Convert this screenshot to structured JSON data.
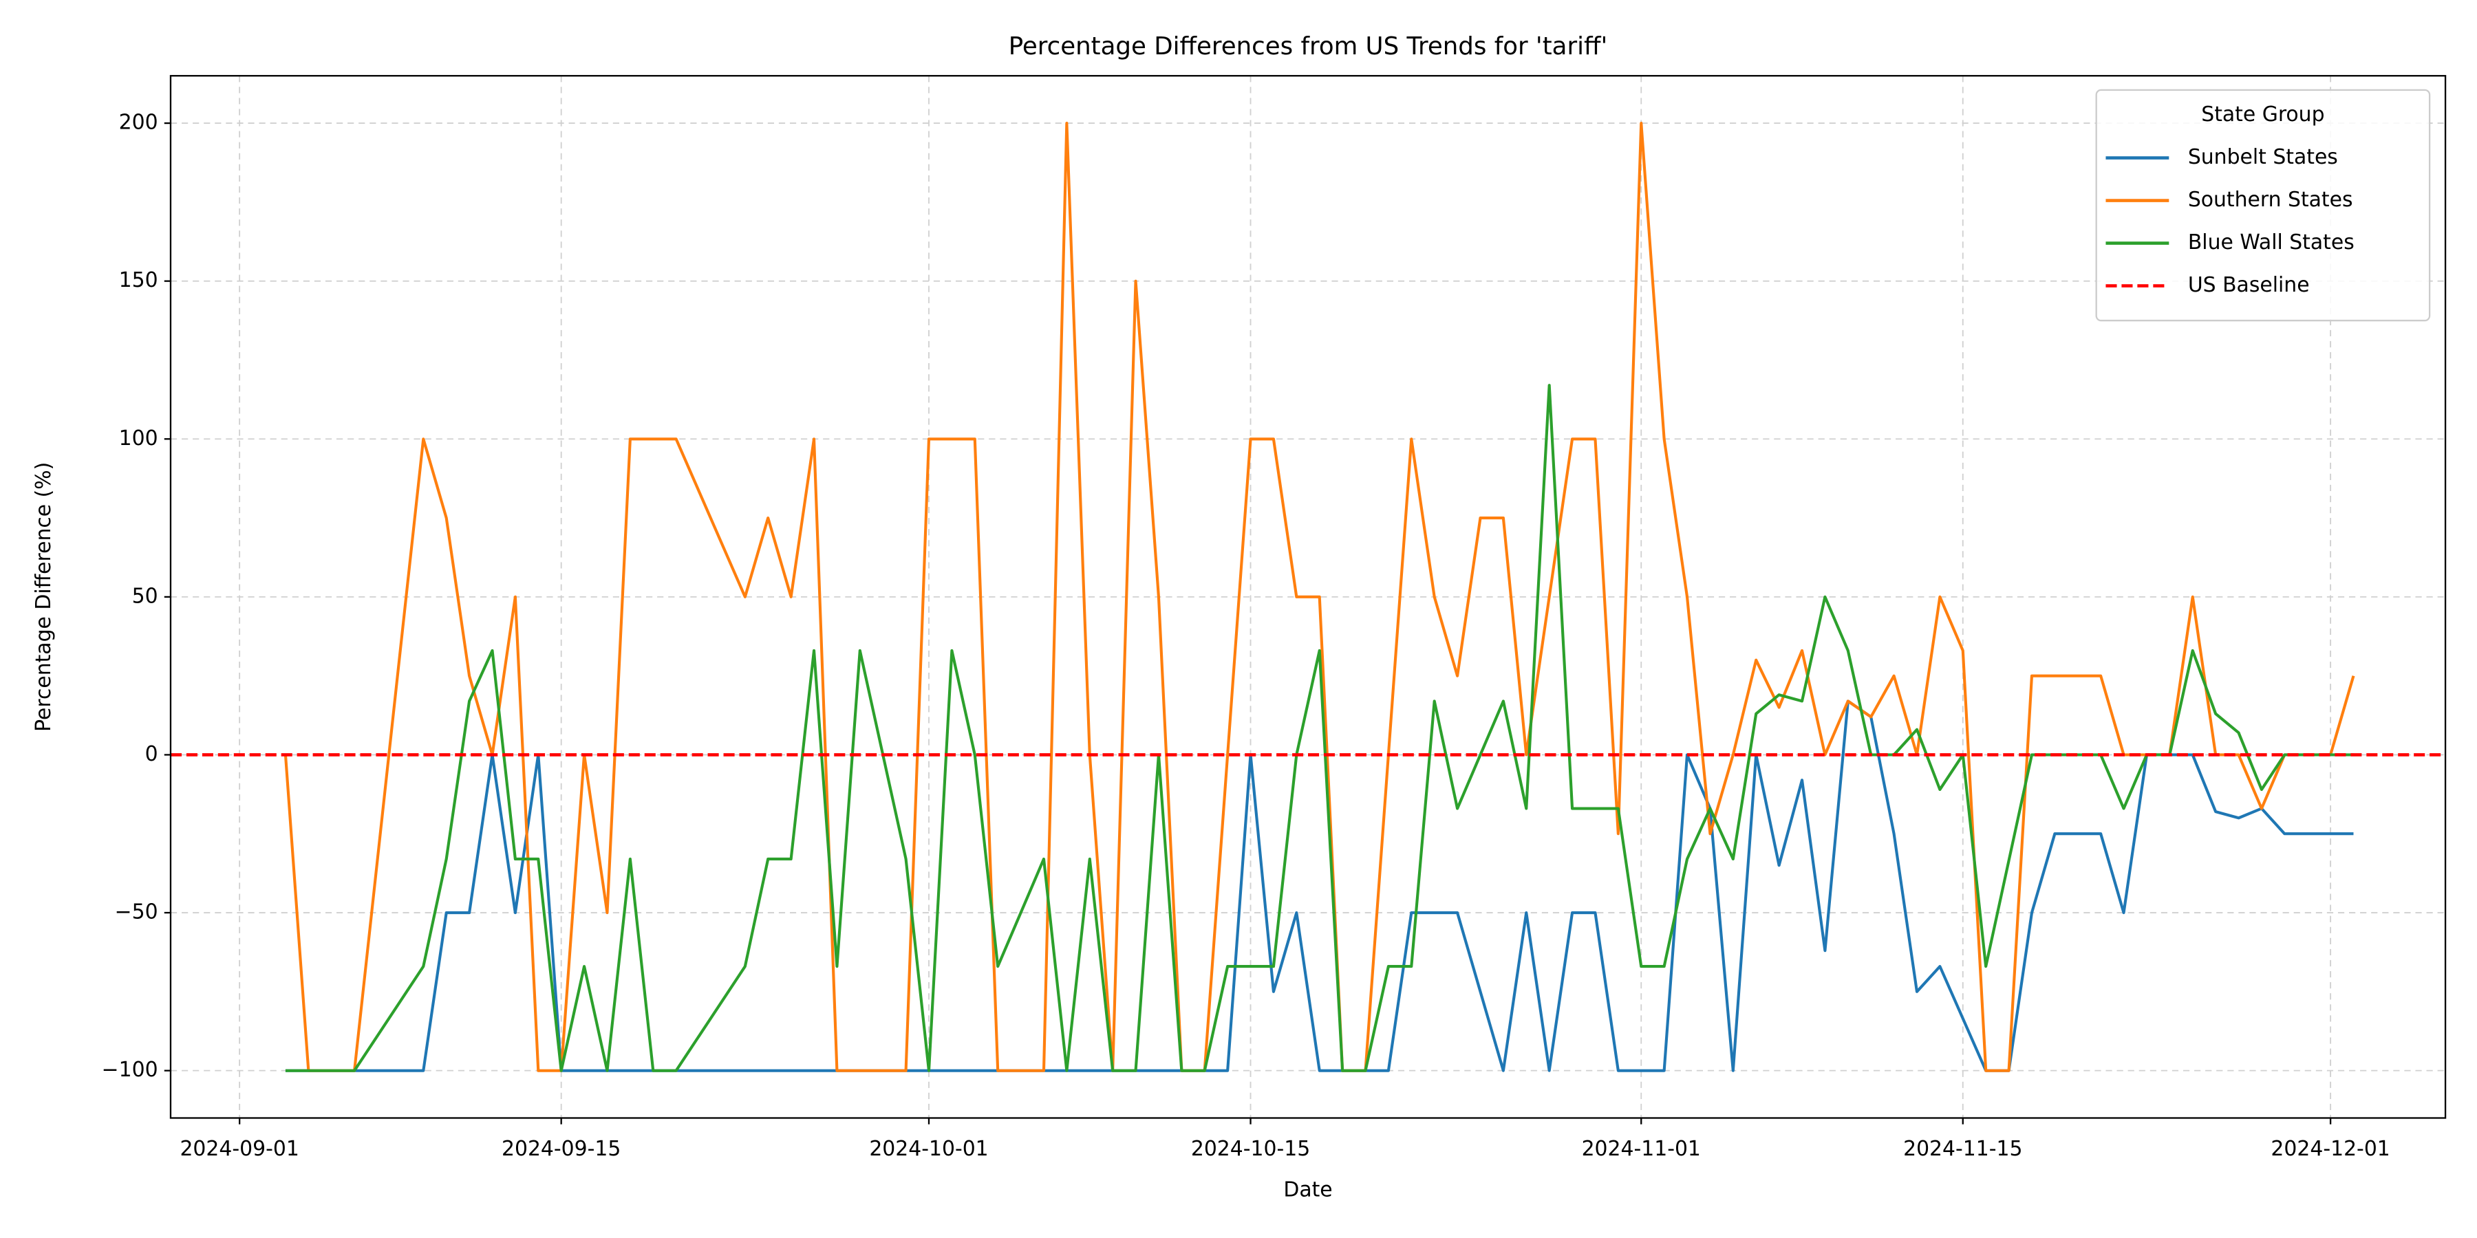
{
  "chart_data": {
    "type": "line",
    "title": "Percentage Differences from US Trends for 'tariff'",
    "xlabel": "Date",
    "ylabel": "Percentage Difference (%)",
    "legend_title": "State Group",
    "legend_position": "upper right",
    "grid": true,
    "xlim": [
      "2024-08-29",
      "2024-12-06"
    ],
    "xticks": [
      "2024-09-01",
      "2024-09-15",
      "2024-10-01",
      "2024-10-15",
      "2024-11-01",
      "2024-11-15",
      "2024-12-01"
    ],
    "ylim": [
      -115,
      215
    ],
    "yticks": [
      {
        "value": -100,
        "label": "−100"
      },
      {
        "value": -50,
        "label": "−50"
      },
      0,
      50,
      100,
      150,
      200
    ],
    "series": [
      {
        "name": "Sunbelt States",
        "color": "#1f77b4",
        "x": [
          "2024-09-03",
          "2024-09-09",
          "2024-09-10",
          "2024-09-11",
          "2024-09-12",
          "2024-09-13",
          "2024-09-14",
          "2024-09-15",
          "2024-10-14",
          "2024-10-15",
          "2024-10-16",
          "2024-10-17",
          "2024-10-18",
          "2024-10-20",
          "2024-10-21",
          "2024-10-22",
          "2024-10-24",
          "2024-10-26",
          "2024-10-27",
          "2024-10-28",
          "2024-10-29",
          "2024-10-30",
          "2024-10-31",
          "2024-11-02",
          "2024-11-03",
          "2024-11-04",
          "2024-11-05",
          "2024-11-06",
          "2024-11-07",
          "2024-11-08",
          "2024-11-09",
          "2024-11-10",
          "2024-11-11",
          "2024-11-12",
          "2024-11-13",
          "2024-11-14",
          "2024-11-16",
          "2024-11-17",
          "2024-11-18",
          "2024-11-19",
          "2024-11-21",
          "2024-11-22",
          "2024-11-23",
          "2024-11-25",
          "2024-11-26",
          "2024-11-27",
          "2024-11-28",
          "2024-11-29",
          "2024-12-02"
        ],
        "values": [
          -100,
          -100,
          -50,
          -50,
          0,
          -50,
          0,
          -100,
          -100,
          0,
          -75,
          -50,
          -100,
          -100,
          -100,
          -50,
          -50,
          -100,
          -50,
          -100,
          -50,
          -50,
          -100,
          -100,
          0,
          -17,
          -100,
          0,
          -35,
          -8,
          -62,
          17,
          12,
          -25,
          -75,
          -67,
          -100,
          -100,
          -50,
          -25,
          -25,
          -50,
          0,
          0,
          -18,
          -20,
          -17,
          -25,
          -25
        ]
      },
      {
        "name": "Southern States",
        "color": "#ff7f0e",
        "x": [
          "2024-09-03",
          "2024-09-04",
          "2024-09-06",
          "2024-09-09",
          "2024-09-10",
          "2024-09-11",
          "2024-09-12",
          "2024-09-13",
          "2024-09-14",
          "2024-09-15",
          "2024-09-16",
          "2024-09-17",
          "2024-09-18",
          "2024-09-20",
          "2024-09-23",
          "2024-09-24",
          "2024-09-25",
          "2024-09-26",
          "2024-09-27",
          "2024-09-30",
          "2024-10-01",
          "2024-10-03",
          "2024-10-04",
          "2024-10-06",
          "2024-10-07",
          "2024-10-08",
          "2024-10-09",
          "2024-10-10",
          "2024-10-11",
          "2024-10-12",
          "2024-10-13",
          "2024-10-15",
          "2024-10-16",
          "2024-10-17",
          "2024-10-18",
          "2024-10-19",
          "2024-10-20",
          "2024-10-22",
          "2024-10-23",
          "2024-10-24",
          "2024-10-25",
          "2024-10-26",
          "2024-10-27",
          "2024-10-29",
          "2024-10-30",
          "2024-10-31",
          "2024-11-01",
          "2024-11-02",
          "2024-11-03",
          "2024-11-04",
          "2024-11-05",
          "2024-11-06",
          "2024-11-07",
          "2024-11-08",
          "2024-11-09",
          "2024-11-10",
          "2024-11-11",
          "2024-11-12",
          "2024-11-13",
          "2024-11-14",
          "2024-11-15",
          "2024-11-16",
          "2024-11-17",
          "2024-11-18",
          "2024-11-21",
          "2024-11-22",
          "2024-11-24",
          "2024-11-25",
          "2024-11-26",
          "2024-11-27",
          "2024-11-28",
          "2024-11-29",
          "2024-12-01",
          "2024-12-02"
        ],
        "values": [
          0,
          -100,
          -100,
          100,
          75,
          25,
          0,
          50,
          -100,
          -100,
          0,
          -50,
          100,
          100,
          50,
          75,
          50,
          100,
          -100,
          -100,
          100,
          100,
          -100,
          -100,
          200,
          0,
          -100,
          150,
          50,
          -100,
          -100,
          100,
          100,
          50,
          50,
          -100,
          -100,
          100,
          50,
          25,
          75,
          75,
          0,
          100,
          100,
          -25,
          200,
          100,
          50,
          -25,
          0,
          30,
          15,
          33,
          0,
          17,
          12,
          25,
          0,
          50,
          33,
          -100,
          -100,
          25,
          25,
          0,
          0,
          50,
          0,
          0,
          -17,
          0,
          0,
          25
        ]
      },
      {
        "name": "Blue Wall States",
        "color": "#2ca02c",
        "x": [
          "2024-09-03",
          "2024-09-06",
          "2024-09-09",
          "2024-09-10",
          "2024-09-11",
          "2024-09-12",
          "2024-09-13",
          "2024-09-14",
          "2024-09-15",
          "2024-09-16",
          "2024-09-17",
          "2024-09-18",
          "2024-09-19",
          "2024-09-20",
          "2024-09-23",
          "2024-09-24",
          "2024-09-25",
          "2024-09-26",
          "2024-09-27",
          "2024-09-28",
          "2024-09-30",
          "2024-10-01",
          "2024-10-02",
          "2024-10-03",
          "2024-10-04",
          "2024-10-06",
          "2024-10-07",
          "2024-10-08",
          "2024-10-09",
          "2024-10-10",
          "2024-10-11",
          "2024-10-12",
          "2024-10-13",
          "2024-10-14",
          "2024-10-16",
          "2024-10-17",
          "2024-10-18",
          "2024-10-19",
          "2024-10-20",
          "2024-10-21",
          "2024-10-22",
          "2024-10-23",
          "2024-10-24",
          "2024-10-26",
          "2024-10-27",
          "2024-10-28",
          "2024-10-29",
          "2024-10-31",
          "2024-11-01",
          "2024-11-02",
          "2024-11-03",
          "2024-11-04",
          "2024-11-05",
          "2024-11-06",
          "2024-11-07",
          "2024-11-08",
          "2024-11-09",
          "2024-11-10",
          "2024-11-11",
          "2024-11-12",
          "2024-11-13",
          "2024-11-14",
          "2024-11-15",
          "2024-11-16",
          "2024-11-18",
          "2024-11-21",
          "2024-11-22",
          "2024-11-23",
          "2024-11-24",
          "2024-11-25",
          "2024-11-26",
          "2024-11-27",
          "2024-11-28",
          "2024-11-29",
          "2024-12-02"
        ],
        "values": [
          -100,
          -100,
          -67,
          -33,
          17,
          33,
          -33,
          -33,
          -100,
          -67,
          -100,
          -33,
          -100,
          -100,
          -67,
          -33,
          -33,
          33,
          -67,
          33,
          -33,
          -100,
          33,
          0,
          -67,
          -33,
          -100,
          -33,
          -100,
          -100,
          0,
          -100,
          -100,
          -67,
          -67,
          0,
          33,
          -100,
          -100,
          -67,
          -67,
          17,
          -17,
          17,
          -17,
          117,
          -17,
          -17,
          -67,
          -67,
          -33,
          -17,
          -33,
          13,
          19,
          17,
          50,
          33,
          0,
          0,
          8,
          -11,
          0,
          -67,
          0,
          0,
          -17,
          0,
          0,
          33,
          13,
          7,
          -11,
          0,
          0
        ]
      }
    ],
    "baseline": {
      "name": "US Baseline",
      "color": "#ff0000",
      "value": 0
    }
  }
}
